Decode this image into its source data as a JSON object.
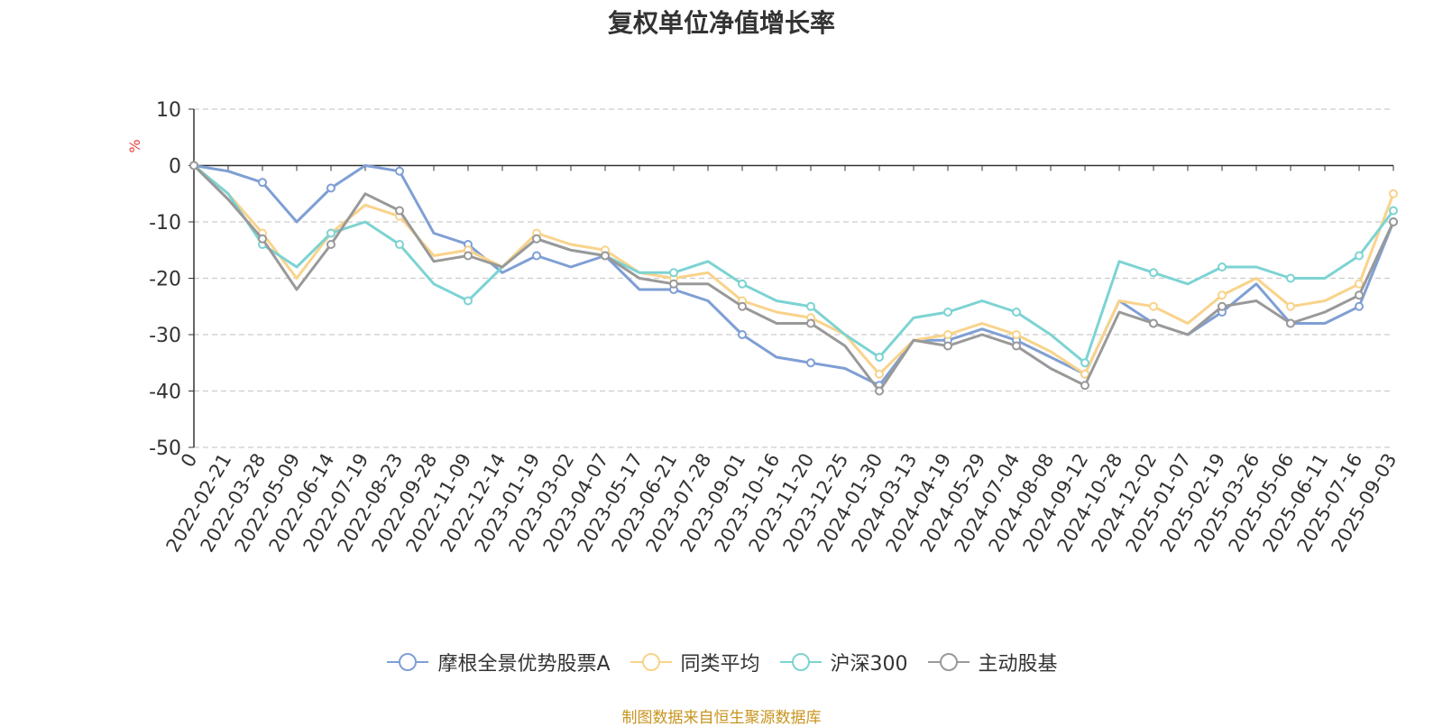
{
  "chart_data": {
    "type": "line",
    "title": "复权单位净值增长率",
    "ylabel": "%",
    "ylim": [
      -50,
      10
    ],
    "yticks": [
      10,
      0,
      -10,
      -20,
      -30,
      -40,
      -50
    ],
    "grid": "horizontal dashed",
    "legend_position": "bottom",
    "x": [
      "0",
      "2022-02-21",
      "2022-03-28",
      "2022-05-09",
      "2022-06-14",
      "2022-07-19",
      "2022-08-23",
      "2022-09-28",
      "2022-11-09",
      "2022-12-14",
      "2023-01-19",
      "2023-03-02",
      "2023-04-07",
      "2023-05-17",
      "2023-06-21",
      "2023-07-28",
      "2023-09-01",
      "2023-10-16",
      "2023-11-20",
      "2023-12-25",
      "2024-01-30",
      "2024-03-13",
      "2024-04-19",
      "2024-05-29",
      "2024-07-04",
      "2024-08-08",
      "2024-09-12",
      "2024-10-28",
      "2024-12-02",
      "2025-01-07",
      "2025-02-19",
      "2025-03-26",
      "2025-05-06",
      "2025-06-11",
      "2025-07-16",
      "2025-09-03"
    ],
    "series": [
      {
        "name": "摩根全景优势股票A",
        "color": "#7f9fd4",
        "values": [
          0,
          -1,
          -3,
          -10,
          -4,
          0,
          -1,
          -12,
          -14,
          -19,
          -16,
          -18,
          -16,
          -22,
          -22,
          -24,
          -30,
          -34,
          -35,
          -36,
          -39,
          -31,
          -31,
          -29,
          -31,
          -34,
          -37,
          -24,
          -28,
          -30,
          -26,
          -21,
          -28,
          -28,
          -25,
          -10
        ]
      },
      {
        "name": "同类平均",
        "color": "#f9d38b",
        "values": [
          0,
          -5,
          -12,
          -20,
          -12,
          -7,
          -9,
          -16,
          -15,
          -18,
          -12,
          -14,
          -15,
          -19,
          -20,
          -19,
          -24,
          -26,
          -27,
          -30,
          -37,
          -31,
          -30,
          -28,
          -30,
          -33,
          -37,
          -24,
          -25,
          -28,
          -23,
          -20,
          -25,
          -24,
          -21,
          -5
        ]
      },
      {
        "name": "沪深300",
        "color": "#7dd3d3",
        "values": [
          0,
          -5,
          -14,
          -18,
          -12,
          -10,
          -14,
          -21,
          -24,
          -18,
          -13,
          -15,
          -16,
          -19,
          -19,
          -17,
          -21,
          -24,
          -25,
          -30,
          -34,
          -27,
          -26,
          -24,
          -26,
          -30,
          -35,
          -17,
          -19,
          -21,
          -18,
          -18,
          -20,
          -20,
          -16,
          -8
        ]
      },
      {
        "name": "主动股基",
        "color": "#999999",
        "values": [
          0,
          -6,
          -13,
          -22,
          -14,
          -5,
          -8,
          -17,
          -16,
          -18,
          -13,
          -15,
          -16,
          -20,
          -21,
          -21,
          -25,
          -28,
          -28,
          -32,
          -40,
          -31,
          -32,
          -30,
          -32,
          -36,
          -39,
          -26,
          -28,
          -30,
          -25,
          -24,
          -28,
          -26,
          -23,
          -10
        ]
      }
    ]
  },
  "source_note": "制图数据来自恒生聚源数据库"
}
